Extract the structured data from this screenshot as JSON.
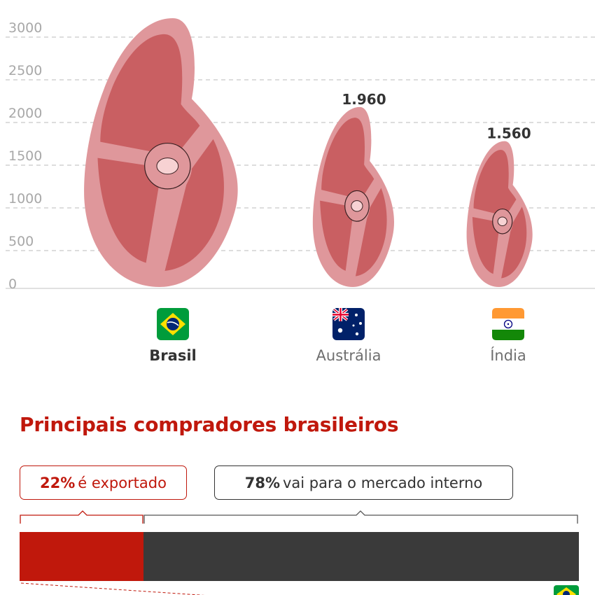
{
  "chart_data": {
    "type": "bar",
    "categories": [
      "Brasil",
      "Austrália",
      "Índia"
    ],
    "values": [
      3000,
      1960,
      1560
    ],
    "value_labels": [
      "",
      "1.960",
      "1.560"
    ],
    "highlight": "Brasil",
    "yticks": [
      0,
      500,
      1000,
      1500,
      2000,
      2500,
      3000
    ],
    "ylim": [
      0,
      3000
    ],
    "grid": true,
    "xlabel": "",
    "ylabel": ""
  },
  "flags": [
    {
      "country": "Brasil",
      "icon": "brazil-flag-icon",
      "colors": {
        "green": "#009c3b",
        "yellow": "#ffdf00",
        "blue": "#002776"
      }
    },
    {
      "country": "Austrália",
      "icon": "australia-flag-icon",
      "colors": {
        "blue": "#012169",
        "red": "#e4002b",
        "white": "#ffffff"
      }
    },
    {
      "country": "Índia",
      "icon": "india-flag-icon",
      "colors": {
        "saffron": "#ff9933",
        "white": "#ffffff",
        "green": "#138808",
        "navy": "#000080"
      }
    }
  ],
  "section": {
    "title": "Principais compradores brasileiros"
  },
  "split": {
    "export": {
      "pct": "22%",
      "text": "é exportado",
      "fraction": 0.22,
      "color": "#c0180c"
    },
    "internal": {
      "pct": "78%",
      "text": "vai para o mercado interno",
      "fraction": 0.78,
      "color": "#3a3a3a"
    }
  },
  "colors": {
    "steak_outer": "#df979b",
    "steak_inner": "#c95f62",
    "steak_outline": "#3a2022",
    "bone": "#f7d2d3",
    "accent_red": "#c0180c",
    "grid": "#bbbbbb"
  }
}
